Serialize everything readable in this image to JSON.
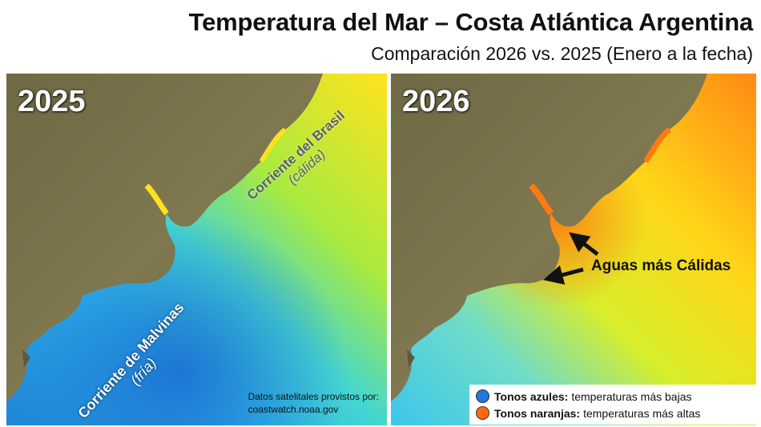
{
  "title": "Temperatura del Mar – Costa Atlántica Argentina",
  "subtitle": "Comparación 2026 vs. 2025 (Enero a la fecha)",
  "left_panel": {
    "year": "2025",
    "brasil_current": "Corriente del Brasil",
    "brasil_note": "(cálida)",
    "malvinas_current": "Corriente de Malvinas",
    "malvinas_note": "(fría)",
    "source_line1": "Datos satelitales provistos por:",
    "source_line2": "coastwatch.noaa.gov"
  },
  "right_panel": {
    "year": "2026",
    "warm_waters": "Aguas más Cálidas"
  },
  "legend": {
    "blue_bold": "Tonos azules:",
    "blue_text": "temperaturas más bajas",
    "orange_bold": "Tonos naranjas:",
    "orange_text": "temperaturas más altas"
  },
  "colors": {
    "land": "#7a7248",
    "cold": "#1e88d6",
    "cool": "#35c8e8",
    "mild": "#b8ee3a",
    "warm": "#ffd21a",
    "hot": "#ff8a14",
    "legend_blue": "#1e78e0",
    "legend_orange": "#ff6a10"
  }
}
